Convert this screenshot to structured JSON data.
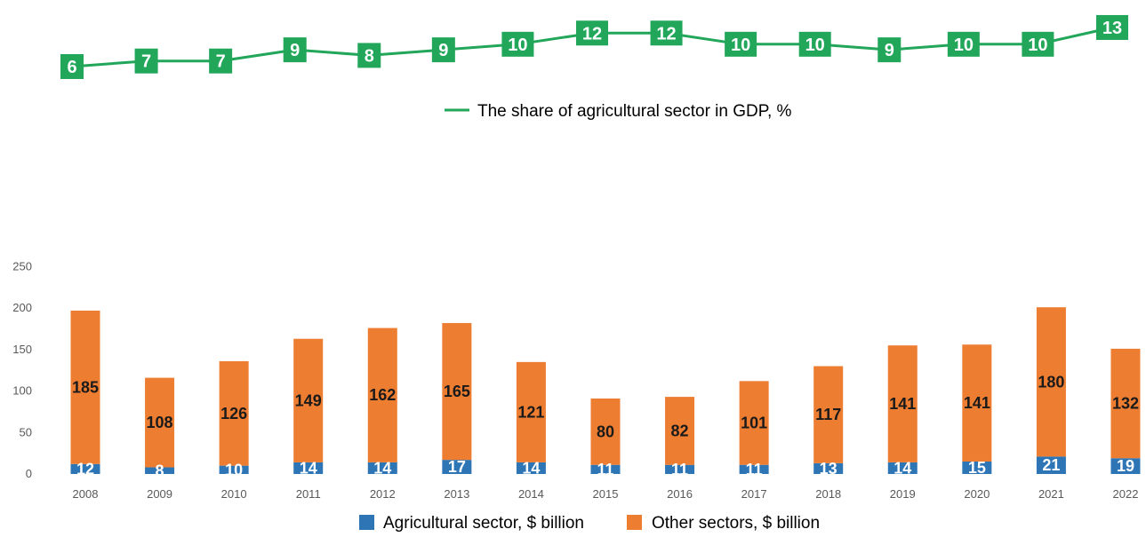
{
  "chart_data": {
    "type": "bar",
    "categories": [
      "2008",
      "2009",
      "2010",
      "2011",
      "2012",
      "2013",
      "2014",
      "2015",
      "2016",
      "2017",
      "2018",
      "2019",
      "2020",
      "2021",
      "2022"
    ],
    "series": [
      {
        "name": "Agricultural sector, $ billion",
        "values": [
          12,
          8,
          10,
          14,
          14,
          17,
          14,
          11,
          11,
          11,
          13,
          14,
          15,
          21,
          19
        ],
        "color": "#2e75b6"
      },
      {
        "name": "Other sectors, $ billion",
        "values": [
          185,
          108,
          126,
          149,
          162,
          165,
          121,
          80,
          82,
          101,
          117,
          141,
          141,
          180,
          132
        ],
        "color": "#ed7d31"
      }
    ],
    "line_series": {
      "name": "The share of agricultural sector in GDP, %",
      "values": [
        6,
        7,
        7,
        9,
        8,
        9,
        10,
        12,
        12,
        10,
        10,
        9,
        10,
        10,
        13
      ],
      "color": "#21a65a"
    },
    "y_ticks": [
      0,
      50,
      100,
      150,
      200,
      250
    ],
    "ylim": [
      0,
      280
    ],
    "stacked": true,
    "grid": false
  }
}
